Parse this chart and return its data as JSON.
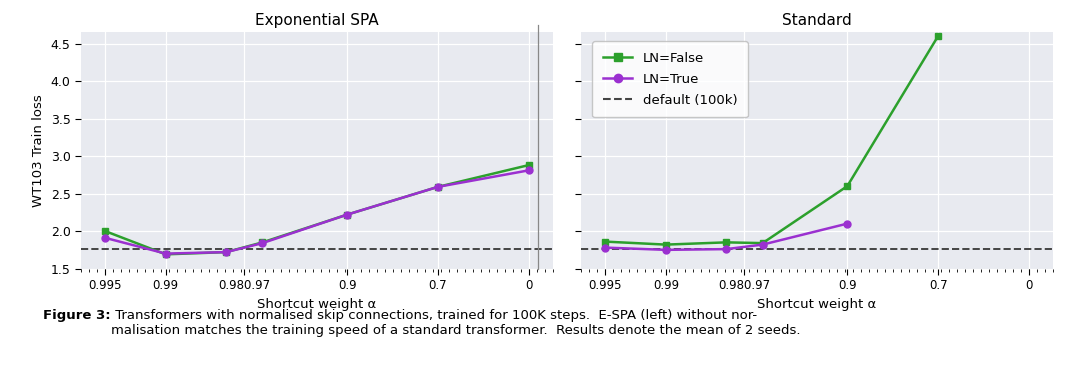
{
  "title_left": "Exponential SPA",
  "title_right": "Standard",
  "xlabel": "Shortcut weight α",
  "ylabel": "WT103 Train loss",
  "x_tick_labels": [
    "0.995",
    "0.99",
    "0.980.97",
    "0.9",
    "0.7",
    "0"
  ],
  "ylim": [
    1.5,
    4.65
  ],
  "yticks": [
    1.5,
    2.0,
    2.5,
    3.0,
    3.5,
    4.0,
    4.5
  ],
  "ytick_labels": [
    "1.5 -",
    "2.0 -",
    "2.5 -",
    "3.0 -",
    "3.5 -",
    "4.0 -",
    "4.5 -"
  ],
  "default_value": 1.755,
  "left_ln_false": [
    2.0,
    1.69,
    1.72,
    1.85,
    2.22,
    2.59,
    2.88
  ],
  "left_ln_true": [
    1.91,
    1.7,
    1.72,
    1.84,
    2.22,
    2.59,
    2.81
  ],
  "right_ln_false": [
    1.86,
    1.82,
    1.85,
    1.84,
    2.6,
    4.6,
    null
  ],
  "right_ln_true": [
    1.78,
    1.75,
    1.76,
    1.82,
    2.1,
    null,
    null
  ],
  "color_ln_false": "#2ca02c",
  "color_ln_true": "#9b30d0",
  "color_default": "#444444",
  "bg_color": "#e8eaf0",
  "legend_labels": [
    "LN=False",
    "LN=True",
    "default (100k)"
  ],
  "caption_bold": "Figure 3:",
  "caption_normal": " Transformers with normalised skip connections, trained for 100K steps.  E-SPA (left) without nor-\nmalisation matches the training speed of a standard transformer.  Results denote the mean of 2 seeds."
}
